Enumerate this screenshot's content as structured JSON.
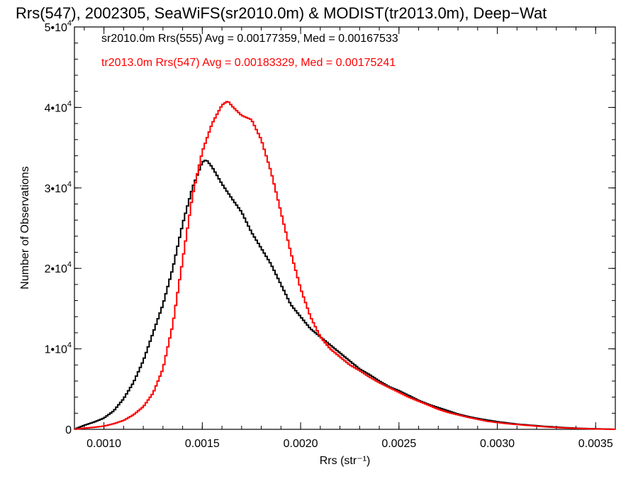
{
  "chart_data": {
    "type": "line",
    "style": "step",
    "title": "Rrs(547), 2002305, SeaWiFS(sr2010.0m) & MODIST(tr2013.0m), Deep−Wat",
    "xlabel": "Rrs (str⁻¹)",
    "ylabel": "Number of Observations",
    "xlim": [
      0.00085,
      0.0036
    ],
    "ylim": [
      0,
      50000
    ],
    "grid": false,
    "legend_placement": "top-left",
    "x_ticks": [
      {
        "value": 0.001,
        "label": "0.0010"
      },
      {
        "value": 0.0015,
        "label": "0.0015"
      },
      {
        "value": 0.002,
        "label": "0.0020"
      },
      {
        "value": 0.0025,
        "label": "0.0025"
      },
      {
        "value": 0.003,
        "label": "0.0030"
      },
      {
        "value": 0.0035,
        "label": "0.0035"
      }
    ],
    "y_ticks": [
      {
        "value": 0,
        "mant": "0",
        "exp": ""
      },
      {
        "value": 10000,
        "mant": "1•10",
        "exp": "4"
      },
      {
        "value": 20000,
        "mant": "2•10",
        "exp": "4"
      },
      {
        "value": 30000,
        "mant": "3•10",
        "exp": "4"
      },
      {
        "value": 40000,
        "mant": "4•10",
        "exp": "4"
      },
      {
        "value": 50000,
        "mant": "5•10",
        "exp": "4"
      }
    ],
    "series": [
      {
        "name": "sr2010.0m Rrs(555) Avg = 0.00177359, Med = 0.00167533",
        "color": "#000000",
        "points": [
          [
            0.00085,
            0
          ],
          [
            0.0009,
            500
          ],
          [
            0.00095,
            900
          ],
          [
            0.001,
            1400
          ],
          [
            0.00105,
            2300
          ],
          [
            0.0011,
            3800
          ],
          [
            0.00115,
            5800
          ],
          [
            0.0012,
            8500
          ],
          [
            0.00125,
            12000
          ],
          [
            0.0013,
            15500
          ],
          [
            0.00135,
            20000
          ],
          [
            0.0014,
            25500
          ],
          [
            0.00145,
            30000
          ],
          [
            0.0015,
            33200
          ],
          [
            0.00152,
            33500
          ],
          [
            0.00155,
            32600
          ],
          [
            0.0016,
            30500
          ],
          [
            0.00165,
            28700
          ],
          [
            0.0017,
            27000
          ],
          [
            0.00175,
            24500
          ],
          [
            0.0018,
            22500
          ],
          [
            0.00185,
            20500
          ],
          [
            0.0019,
            18000
          ],
          [
            0.00195,
            15500
          ],
          [
            0.002,
            14000
          ],
          [
            0.00205,
            12500
          ],
          [
            0.0021,
            11500
          ],
          [
            0.00215,
            10500
          ],
          [
            0.0022,
            9500
          ],
          [
            0.00225,
            8500
          ],
          [
            0.0023,
            7500
          ],
          [
            0.00235,
            6800
          ],
          [
            0.0024,
            6000
          ],
          [
            0.00245,
            5300
          ],
          [
            0.0025,
            4800
          ],
          [
            0.00255,
            4200
          ],
          [
            0.0026,
            3600
          ],
          [
            0.00265,
            3100
          ],
          [
            0.0027,
            2700
          ],
          [
            0.00275,
            2300
          ],
          [
            0.0028,
            1900
          ],
          [
            0.00285,
            1600
          ],
          [
            0.0029,
            1350
          ],
          [
            0.00295,
            1150
          ],
          [
            0.003,
            950
          ],
          [
            0.00305,
            800
          ],
          [
            0.0031,
            650
          ],
          [
            0.00315,
            550
          ],
          [
            0.0032,
            450
          ],
          [
            0.00325,
            350
          ],
          [
            0.0033,
            280
          ],
          [
            0.00335,
            200
          ],
          [
            0.0034,
            150
          ],
          [
            0.00345,
            100
          ],
          [
            0.0035,
            70
          ],
          [
            0.00355,
            40
          ],
          [
            0.0036,
            0
          ]
        ]
      },
      {
        "name": "tr2013.0m Rrs(547) Avg = 0.00183329, Med = 0.00175241",
        "color": "#ff0000",
        "points": [
          [
            0.00085,
            0
          ],
          [
            0.0009,
            150
          ],
          [
            0.00095,
            250
          ],
          [
            0.001,
            400
          ],
          [
            0.00105,
            700
          ],
          [
            0.0011,
            1100
          ],
          [
            0.00115,
            1800
          ],
          [
            0.0012,
            2800
          ],
          [
            0.00125,
            4500
          ],
          [
            0.0013,
            7500
          ],
          [
            0.00135,
            13000
          ],
          [
            0.0014,
            21000
          ],
          [
            0.00145,
            29000
          ],
          [
            0.0015,
            34500
          ],
          [
            0.00155,
            38000
          ],
          [
            0.0016,
            40300
          ],
          [
            0.00163,
            40800
          ],
          [
            0.00165,
            40200
          ],
          [
            0.0017,
            39000
          ],
          [
            0.00175,
            38500
          ],
          [
            0.0018,
            36000
          ],
          [
            0.00185,
            32000
          ],
          [
            0.0019,
            27000
          ],
          [
            0.00195,
            22000
          ],
          [
            0.002,
            17500
          ],
          [
            0.00205,
            14000
          ],
          [
            0.0021,
            11500
          ],
          [
            0.00215,
            10000
          ],
          [
            0.0022,
            9000
          ],
          [
            0.00225,
            8000
          ],
          [
            0.0023,
            7300
          ],
          [
            0.00235,
            6500
          ],
          [
            0.0024,
            5800
          ],
          [
            0.00245,
            5200
          ],
          [
            0.0025,
            4600
          ],
          [
            0.00255,
            4000
          ],
          [
            0.0026,
            3500
          ],
          [
            0.00265,
            3000
          ],
          [
            0.0027,
            2500
          ],
          [
            0.00275,
            2100
          ],
          [
            0.0028,
            1800
          ],
          [
            0.00285,
            1500
          ],
          [
            0.0029,
            1250
          ],
          [
            0.00295,
            1000
          ],
          [
            0.003,
            850
          ],
          [
            0.00305,
            700
          ],
          [
            0.0031,
            600
          ],
          [
            0.00315,
            500
          ],
          [
            0.0032,
            400
          ],
          [
            0.00325,
            300
          ],
          [
            0.0033,
            230
          ],
          [
            0.00335,
            170
          ],
          [
            0.0034,
            120
          ],
          [
            0.00345,
            80
          ],
          [
            0.0035,
            50
          ],
          [
            0.00355,
            30
          ],
          [
            0.0036,
            0
          ]
        ]
      }
    ]
  }
}
